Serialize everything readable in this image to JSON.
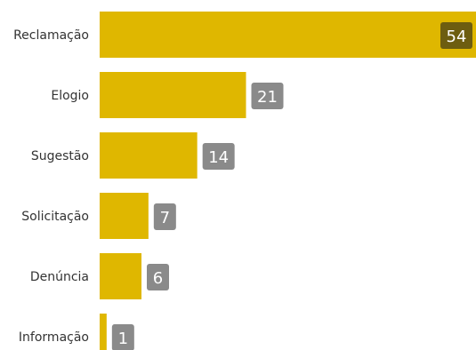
{
  "chart_data": {
    "type": "bar",
    "orientation": "horizontal",
    "categories": [
      "Reclamação",
      "Elogio",
      "Sugestão",
      "Solicitação",
      "Denúncia",
      "Informação"
    ],
    "values": [
      54,
      21,
      14,
      7,
      6,
      1
    ],
    "xlim": [
      0,
      54
    ],
    "grid": false,
    "legend": "none",
    "title": "",
    "xlabel": "",
    "ylabel": ""
  },
  "colors": {
    "bar": "#dfb700",
    "label_box": "#8a8a8a",
    "label_box_inside": "#6d5d10",
    "category_text": "#333333",
    "value_text": "#ffffff"
  }
}
